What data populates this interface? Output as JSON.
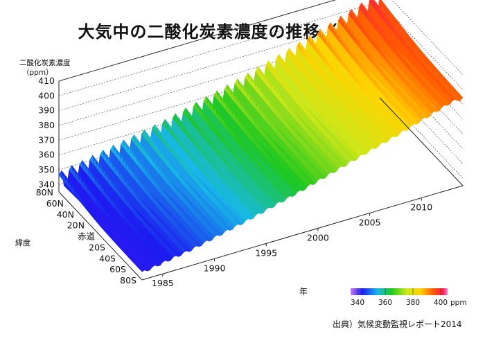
{
  "chart_data": {
    "type": "area",
    "title": "大気中の二酸化炭素濃度の推移（緯度別）",
    "zlabel": "二酸化炭素濃度",
    "zunit": "（ppm）",
    "xlabel": "年",
    "ylabel": "緯度",
    "source": "出典）気候変動監視レポート2014",
    "z_ticks": [
      "410",
      "400",
      "390",
      "380",
      "370",
      "360",
      "350",
      "340"
    ],
    "zlim": [
      335,
      410
    ],
    "x_ticks": [
      "1985",
      "1990",
      "1995",
      "2000",
      "2005",
      "2010"
    ],
    "xlim": [
      1983,
      2014
    ],
    "y_ticks": [
      "80N",
      "60N",
      "40N",
      "20N",
      "赤道",
      "20S",
      "40S",
      "60S",
      "80S"
    ],
    "colorbar": {
      "ticks": [
        "340",
        "360",
        "380",
        "400"
      ],
      "unit": "ppm",
      "range": [
        335,
        405
      ]
    },
    "series": [
      {
        "latitude": "80N",
        "x": [
          1983,
          1988,
          1993,
          1998,
          2003,
          2008,
          2013
        ],
        "values": [
          342,
          349,
          356,
          365,
          375,
          386,
          398
        ]
      },
      {
        "latitude": "赤道",
        "x": [
          1983,
          1988,
          1993,
          1998,
          2003,
          2008,
          2013
        ],
        "values": [
          340,
          347,
          355,
          364,
          374,
          384,
          395
        ]
      },
      {
        "latitude": "80S",
        "x": [
          1983,
          1988,
          1993,
          1998,
          2003,
          2008,
          2013
        ],
        "values": [
          340,
          346,
          354,
          363,
          373,
          383,
          394
        ]
      }
    ]
  }
}
